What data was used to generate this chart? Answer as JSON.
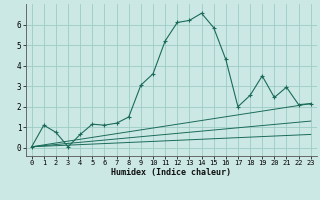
{
  "xlabel": "Humidex (Indice chaleur)",
  "bg_color": "#cce8e4",
  "grid_color": "#9dccc6",
  "line_color": "#1a6b5a",
  "x_ticks": [
    0,
    1,
    2,
    3,
    4,
    5,
    6,
    7,
    8,
    9,
    10,
    11,
    12,
    13,
    14,
    15,
    16,
    17,
    18,
    19,
    20,
    21,
    22,
    23
  ],
  "y_ticks": [
    0,
    1,
    2,
    3,
    4,
    5,
    6
  ],
  "xlim": [
    -0.5,
    23.5
  ],
  "ylim": [
    -0.4,
    7.0
  ],
  "main_line": {
    "x": [
      0,
      1,
      2,
      3,
      4,
      5,
      6,
      7,
      8,
      9,
      10,
      11,
      12,
      13,
      14,
      15,
      16,
      17,
      18,
      19,
      20,
      21,
      22,
      23
    ],
    "y": [
      0.05,
      1.1,
      0.75,
      0.05,
      0.65,
      1.15,
      1.1,
      1.2,
      1.5,
      3.05,
      3.6,
      5.2,
      6.1,
      6.2,
      6.55,
      5.85,
      4.3,
      2.0,
      2.55,
      3.5,
      2.45,
      2.95,
      2.1,
      2.15
    ]
  },
  "ref_lines": [
    {
      "x": [
        0,
        23
      ],
      "y": [
        0.05,
        2.15
      ]
    },
    {
      "x": [
        0,
        23
      ],
      "y": [
        0.05,
        1.3
      ]
    },
    {
      "x": [
        0,
        23
      ],
      "y": [
        0.05,
        0.65
      ]
    }
  ],
  "spine_color": "#555555",
  "tick_fontsize": 5.0,
  "xlabel_fontsize": 6.0
}
